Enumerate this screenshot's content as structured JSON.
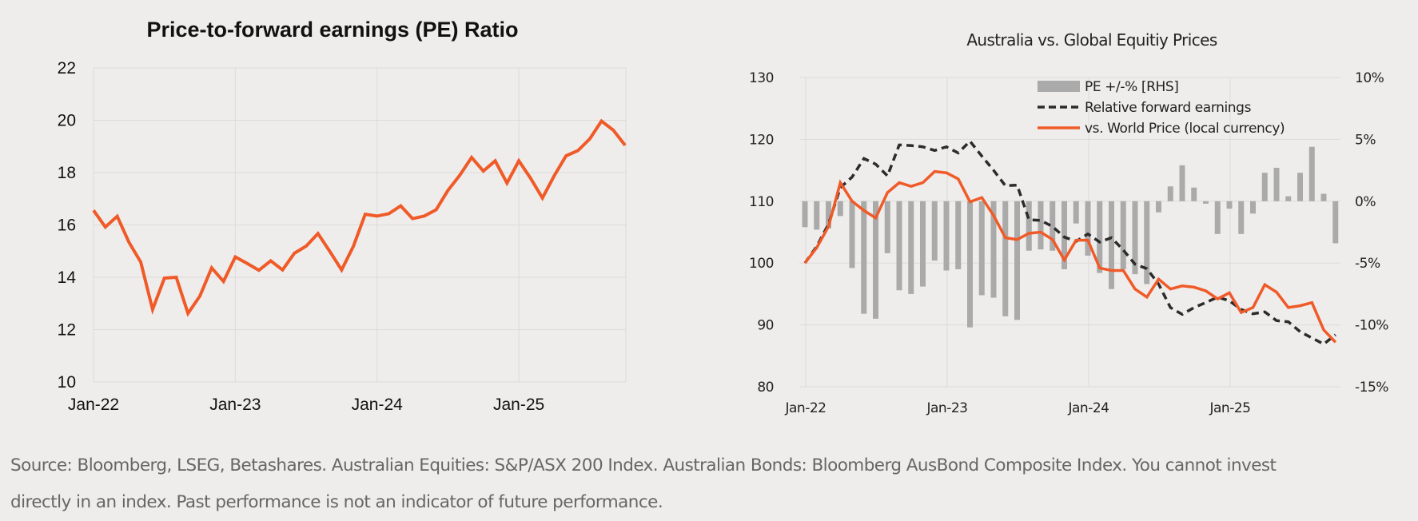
{
  "chart_data": [
    {
      "type": "line",
      "title": "Price-to-forward earnings (PE) Ratio",
      "xlabel": "",
      "ylabel": "",
      "ylim": [
        10,
        22
      ],
      "yticks": [
        "10",
        "12",
        "14",
        "16",
        "18",
        "20",
        "22"
      ],
      "xticks": [
        "Jan-22",
        "Jan-23",
        "Jan-24",
        "Jan-25"
      ],
      "grid": true,
      "x": [
        "Jan-22",
        "Feb-22",
        "Mar-22",
        "Apr-22",
        "May-22",
        "Jun-22",
        "Jul-22",
        "Aug-22",
        "Sep-22",
        "Oct-22",
        "Nov-22",
        "Dec-22",
        "Jan-23",
        "Feb-23",
        "Mar-23",
        "Apr-23",
        "May-23",
        "Jun-23",
        "Jul-23",
        "Aug-23",
        "Sep-23",
        "Oct-23",
        "Nov-23",
        "Dec-23",
        "Jan-24",
        "Feb-24",
        "Mar-24",
        "Apr-24",
        "May-24",
        "Jun-24",
        "Jul-24",
        "Aug-24",
        "Sep-24",
        "Oct-24",
        "Nov-24",
        "Dec-24",
        "Jan-25",
        "Feb-25",
        "Mar-25",
        "Apr-25",
        "May-25",
        "Jun-25",
        "Jul-25",
        "Aug-25",
        "Sep-25",
        "Oct-25"
      ],
      "series": [
        {
          "name": "PE Ratio",
          "color": "#f05a28",
          "values": [
            16.56,
            15.92,
            16.33,
            15.34,
            14.58,
            12.77,
            13.97,
            14.0,
            12.62,
            13.28,
            14.36,
            13.84,
            14.78,
            14.53,
            14.27,
            14.63,
            14.28,
            14.92,
            15.19,
            15.67,
            14.99,
            14.28,
            15.19,
            16.41,
            16.34,
            16.43,
            16.73,
            16.24,
            16.34,
            16.58,
            17.32,
            17.9,
            18.58,
            18.06,
            18.45,
            17.6,
            18.45,
            17.78,
            17.03,
            17.88,
            18.64,
            18.84,
            19.29,
            19.97,
            19.62,
            19.04
          ]
        }
      ]
    },
    {
      "type": "bar+line",
      "title": "Australia vs. Global Equitiy Prices",
      "xlabel": "",
      "ylabel": "",
      "ylim": [
        80,
        130
      ],
      "y2lim": [
        -15,
        10
      ],
      "yticks": [
        "80",
        "90",
        "100",
        "110",
        "120",
        "130"
      ],
      "y2ticks": [
        "-15%",
        "-10%",
        "-5%",
        "0%",
        "5%",
        "10%"
      ],
      "xticks": [
        "Jan-22",
        "Jan-23",
        "Jan-24",
        "Jan-25"
      ],
      "grid": true,
      "legend_position": "top-center",
      "legend": [
        "PE +/-% [RHS]",
        "Relative forward earnings",
        "vs. World Price (local currency)"
      ],
      "x": [
        "Jan-22",
        "Feb-22",
        "Mar-22",
        "Apr-22",
        "May-22",
        "Jun-22",
        "Jul-22",
        "Aug-22",
        "Sep-22",
        "Oct-22",
        "Nov-22",
        "Dec-22",
        "Jan-23",
        "Feb-23",
        "Mar-23",
        "Apr-23",
        "May-23",
        "Jun-23",
        "Jul-23",
        "Aug-23",
        "Sep-23",
        "Oct-23",
        "Nov-23",
        "Dec-23",
        "Jan-24",
        "Feb-24",
        "Mar-24",
        "Apr-24",
        "May-24",
        "Jun-24",
        "Jul-24",
        "Aug-24",
        "Sep-24",
        "Oct-24",
        "Nov-24",
        "Dec-24",
        "Jan-25",
        "Feb-25",
        "Mar-25",
        "Apr-25",
        "May-25",
        "Jun-25",
        "Jul-25",
        "Aug-25",
        "Sep-25",
        "Oct-25"
      ],
      "series": [
        {
          "name": "PE +/-% [RHS]",
          "type": "bar",
          "axis": "right",
          "color": "#aaaaaa",
          "values": [
            -2.1,
            -2.3,
            -2.2,
            -1.2,
            -5.4,
            -9.1,
            -9.5,
            -4.2,
            -7.2,
            -7.5,
            -6.9,
            -4.8,
            -5.6,
            -5.5,
            -10.2,
            -7.6,
            -7.8,
            -9.3,
            -9.6,
            -4.0,
            -3.9,
            -4.0,
            -5.5,
            -1.8,
            -4.4,
            -5.8,
            -7.1,
            -5.5,
            -5.9,
            -6.7,
            -0.9,
            1.2,
            2.9,
            1.1,
            -0.2,
            -2.65,
            -0.6,
            -2.65,
            -1.0,
            2.3,
            2.7,
            0.4,
            2.3,
            4.4,
            0.6,
            -3.4
          ]
        },
        {
          "name": "Relative forward earnings",
          "type": "line",
          "style": "dashed",
          "axis": "left",
          "color": "#2b2b2b",
          "values": [
            100.0,
            102.7,
            106.3,
            112.2,
            113.9,
            116.9,
            116.0,
            114.1,
            119.1,
            119.0,
            118.8,
            118.2,
            118.8,
            117.8,
            119.7,
            117.3,
            115.0,
            112.5,
            112.6,
            107.0,
            106.9,
            105.9,
            104.2,
            103.5,
            104.7,
            103.4,
            104.1,
            102.1,
            99.8,
            99.1,
            96.6,
            92.8,
            91.7,
            92.8,
            93.6,
            94.5,
            93.9,
            92.5,
            91.8,
            92.1,
            90.7,
            90.5,
            88.9,
            87.9,
            86.9,
            88.4
          ]
        },
        {
          "name": "vs. World Price (local currency)",
          "type": "line",
          "style": "solid",
          "axis": "left",
          "color": "#f05a28",
          "values": [
            100.0,
            102.5,
            105.9,
            113.0,
            110.0,
            108.5,
            107.3,
            111.4,
            113.0,
            112.4,
            113.0,
            114.8,
            114.6,
            113.6,
            109.9,
            110.6,
            107.7,
            104.1,
            103.8,
            104.8,
            105.0,
            103.8,
            100.5,
            103.7,
            103.7,
            99.2,
            98.8,
            98.8,
            95.8,
            94.5,
            97.4,
            95.8,
            96.3,
            96.1,
            95.5,
            94.2,
            95.2,
            92.0,
            92.8,
            96.5,
            95.3,
            92.8,
            93.1,
            93.6,
            89.2,
            87.2
          ]
        }
      ]
    }
  ],
  "footer": {
    "source_line1": "Source: Bloomberg, LSEG, Betashares. Australian Equities: S&P/ASX 200 Index. Australian Bonds: Bloomberg AusBond Composite Index. You cannot invest",
    "source_line2": "directly in an index. Past performance is not an indicator of future performance."
  }
}
